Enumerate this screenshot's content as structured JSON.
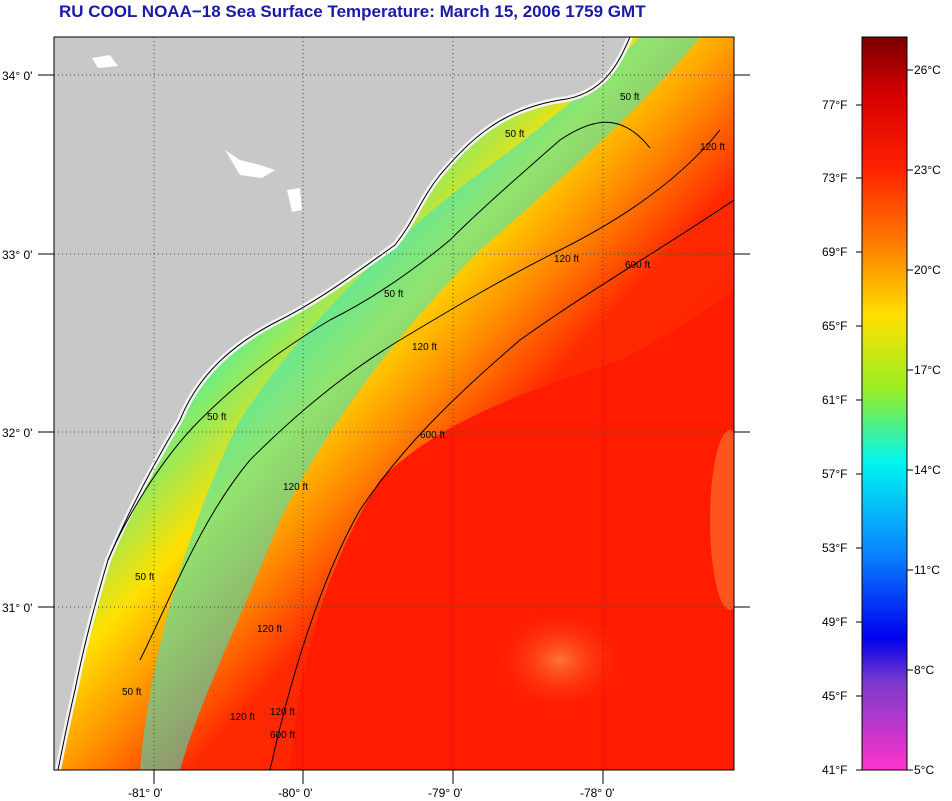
{
  "title": "RU COOL  NOAA−18  Sea Surface Temperature:  March 15, 2006 1759 GMT",
  "map": {
    "lat_labels": [
      "34° 0'",
      "33° 0'",
      "32° 0'",
      "31° 0'"
    ],
    "lon_labels": [
      "-81° 0'",
      "-80° 0'",
      "-79° 0'",
      "-78° 0'"
    ],
    "contours": [
      {
        "depth": "50 ft",
        "labels": [
          "50 ft",
          "50 ft",
          "50 ft",
          "50 ft",
          "50 ft",
          "50 ft"
        ]
      },
      {
        "depth": "120 ft",
        "labels": [
          "120 ft",
          "120 ft",
          "120 ft",
          "120 ft",
          "120 ft",
          "120 ft",
          "120 ft"
        ]
      },
      {
        "depth": "600 ft",
        "labels": [
          "600 ft",
          "600 ft",
          "600 ft"
        ]
      }
    ]
  },
  "colorbar": {
    "fahrenheit_labels": [
      "77°F",
      "73°F",
      "69°F",
      "65°F",
      "61°F",
      "57°F",
      "53°F",
      "49°F",
      "45°F",
      "41°F"
    ],
    "celsius_labels": [
      "26°C",
      "23°C",
      "20°C",
      "17°C",
      "14°C",
      "11°C",
      "8°C",
      "5°C"
    ],
    "colors": {
      "max": "#7a0000",
      "red": "#ff1a00",
      "orange": "#ff7a00",
      "yellow": "#ffe600",
      "green": "#99ee22",
      "cyan": "#00f5f0",
      "blue": "#0a66ff",
      "navy": "#0000ee",
      "purple": "#7a3acc",
      "magenta": "#ff33cc"
    }
  },
  "colors": {
    "land": "#c8c8c8",
    "title": "#1a1aa8"
  }
}
